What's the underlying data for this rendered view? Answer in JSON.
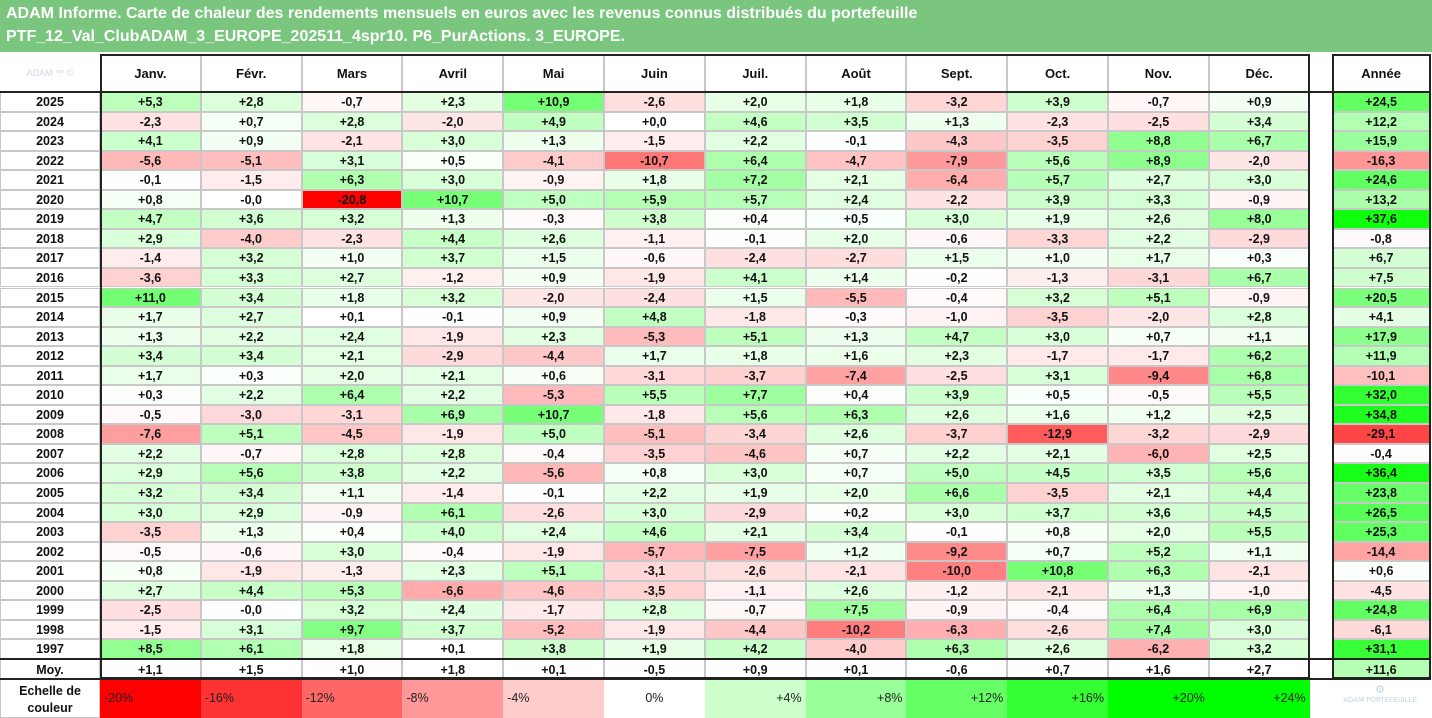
{
  "title": {
    "line1": "ADAM Informe. Carte de chaleur des rendements mensuels en euros avec les revenus connus distribués du portefeuille",
    "line2": "PTF_12_Val_ClubADAM_3_EUROPE_202511_4spr10. P6_PurActions. 3_EUROPE."
  },
  "colors": {
    "title_band": "#7bc67f",
    "scale_negative_max": "#ff0000",
    "scale_zero": "#ffffff",
    "scale_positive_max": "#00ff00"
  },
  "chart_data": {
    "type": "heatmap",
    "corner_label": "ADAM ™ ©",
    "columns": [
      "Janv.",
      "Févr.",
      "Mars",
      "Avril",
      "Mai",
      "Juin",
      "Juil.",
      "Août",
      "Sept.",
      "Oct.",
      "Nov.",
      "Déc."
    ],
    "annual_column": "Année",
    "rows": [
      {
        "year": "2025",
        "values": [
          "+5,3",
          "+2,8",
          "-0,7",
          "+2,3",
          "+10,9",
          "-2,6",
          "+2,0",
          "+1,8",
          "-3,2",
          "+3,9",
          "-0,7",
          "+0,9"
        ],
        "annual": "+24,5"
      },
      {
        "year": "2024",
        "values": [
          "-2,3",
          "+0,7",
          "+2,8",
          "-2,0",
          "+4,9",
          "+0,0",
          "+4,6",
          "+3,5",
          "+1,3",
          "-2,3",
          "-2,5",
          "+3,4"
        ],
        "annual": "+12,2"
      },
      {
        "year": "2023",
        "values": [
          "+4,1",
          "+0,9",
          "-2,1",
          "+3,0",
          "+1,3",
          "-1,5",
          "+2,2",
          "-0,1",
          "-4,3",
          "-3,5",
          "+8,8",
          "+6,7"
        ],
        "annual": "+15,9"
      },
      {
        "year": "2022",
        "values": [
          "-5,6",
          "-5,1",
          "+3,1",
          "+0,5",
          "-4,1",
          "-10,7",
          "+6,4",
          "-4,7",
          "-7,9",
          "+5,6",
          "+8,9",
          "-2,0"
        ],
        "annual": "-16,3"
      },
      {
        "year": "2021",
        "values": [
          "-0,1",
          "-1,5",
          "+6,3",
          "+3,0",
          "-0,9",
          "+1,8",
          "+7,2",
          "+2,1",
          "-6,4",
          "+5,7",
          "+2,7",
          "+3,0"
        ],
        "annual": "+24,6"
      },
      {
        "year": "2020",
        "values": [
          "+0,8",
          "-0,0",
          "-20,8",
          "+10,7",
          "+5,0",
          "+5,9",
          "+5,7",
          "+2,4",
          "-2,2",
          "+3,9",
          "+3,3",
          "-0,9"
        ],
        "annual": "+13,2"
      },
      {
        "year": "2019",
        "values": [
          "+4,7",
          "+3,6",
          "+3,2",
          "+1,3",
          "-0,3",
          "+3,8",
          "+0,4",
          "+0,5",
          "+3,0",
          "+1,9",
          "+2,6",
          "+8,0"
        ],
        "annual": "+37,6"
      },
      {
        "year": "2018",
        "values": [
          "+2,9",
          "-4,0",
          "-2,3",
          "+4,4",
          "+2,6",
          "-1,1",
          "-0,1",
          "+2,0",
          "-0,6",
          "-3,3",
          "+2,2",
          "-2,9"
        ],
        "annual": "-0,8"
      },
      {
        "year": "2017",
        "values": [
          "-1,4",
          "+3,2",
          "+1,0",
          "+3,7",
          "+1,5",
          "-0,6",
          "-2,4",
          "-2,7",
          "+1,5",
          "+1,0",
          "+1,7",
          "+0,3"
        ],
        "annual": "+6,7"
      },
      {
        "year": "2016",
        "values": [
          "-3,6",
          "+3,3",
          "+2,7",
          "-1,2",
          "+0,9",
          "-1,9",
          "+4,1",
          "+1,4",
          "-0,2",
          "-1,3",
          "-3,1",
          "+6,7"
        ],
        "annual": "+7,5"
      },
      {
        "year": "2015",
        "values": [
          "+11,0",
          "+3,4",
          "+1,8",
          "+3,2",
          "-2,0",
          "-2,4",
          "+1,5",
          "-5,5",
          "-0,4",
          "+3,2",
          "+5,1",
          "-0,9"
        ],
        "annual": "+20,5"
      },
      {
        "year": "2014",
        "values": [
          "+1,7",
          "+2,7",
          "+0,1",
          "-0,1",
          "+0,9",
          "+4,8",
          "-1,8",
          "-0,3",
          "-1,0",
          "-3,5",
          "-2,0",
          "+2,8"
        ],
        "annual": "+4,1"
      },
      {
        "year": "2013",
        "values": [
          "+1,3",
          "+2,2",
          "+2,4",
          "-1,9",
          "+2,3",
          "-5,3",
          "+5,1",
          "+1,3",
          "+4,7",
          "+3,0",
          "+0,7",
          "+1,1"
        ],
        "annual": "+17,9"
      },
      {
        "year": "2012",
        "values": [
          "+3,4",
          "+3,4",
          "+2,1",
          "-2,9",
          "-4,4",
          "+1,7",
          "+1,8",
          "+1,6",
          "+2,3",
          "-1,7",
          "-1,7",
          "+6,2"
        ],
        "annual": "+11,9"
      },
      {
        "year": "2011",
        "values": [
          "+1,7",
          "+0,3",
          "+2,0",
          "+2,1",
          "+0,6",
          "-3,1",
          "-3,7",
          "-7,4",
          "-2,5",
          "+3,1",
          "-9,4",
          "+6,8"
        ],
        "annual": "-10,1"
      },
      {
        "year": "2010",
        "values": [
          "+0,3",
          "+2,2",
          "+6,4",
          "+2,2",
          "-5,3",
          "+5,5",
          "+7,7",
          "+0,4",
          "+3,9",
          "+0,5",
          "-0,5",
          "+5,5"
        ],
        "annual": "+32,0"
      },
      {
        "year": "2009",
        "values": [
          "-0,5",
          "-3,0",
          "-3,1",
          "+6,9",
          "+10,7",
          "-1,8",
          "+5,6",
          "+6,3",
          "+2,6",
          "+1,6",
          "+1,2",
          "+2,5"
        ],
        "annual": "+34,8"
      },
      {
        "year": "2008",
        "values": [
          "-7,6",
          "+5,1",
          "-4,5",
          "-1,9",
          "+5,0",
          "-5,1",
          "-3,4",
          "+2,6",
          "-3,7",
          "-12,9",
          "-3,2",
          "-2,9"
        ],
        "annual": "-29,1"
      },
      {
        "year": "2007",
        "values": [
          "+2,2",
          "-0,7",
          "+2,8",
          "+2,8",
          "-0,4",
          "-3,5",
          "-4,6",
          "+0,7",
          "+2,2",
          "+2,1",
          "-6,0",
          "+2,5"
        ],
        "annual": "-0,4"
      },
      {
        "year": "2006",
        "values": [
          "+2,9",
          "+5,6",
          "+3,8",
          "+2,2",
          "-5,6",
          "+0,8",
          "+3,0",
          "+0,7",
          "+5,0",
          "+4,5",
          "+3,5",
          "+5,6"
        ],
        "annual": "+36,4"
      },
      {
        "year": "2005",
        "values": [
          "+3,2",
          "+3,4",
          "+1,1",
          "-1,4",
          "-0,1",
          "+2,2",
          "+1,9",
          "+2,0",
          "+6,6",
          "-3,5",
          "+2,1",
          "+4,4"
        ],
        "annual": "+23,8"
      },
      {
        "year": "2004",
        "values": [
          "+3,0",
          "+2,9",
          "-0,9",
          "+6,1",
          "-2,6",
          "+3,0",
          "-2,9",
          "+0,2",
          "+3,0",
          "+3,7",
          "+3,6",
          "+4,5"
        ],
        "annual": "+26,5"
      },
      {
        "year": "2003",
        "values": [
          "-3,5",
          "+1,3",
          "+0,4",
          "+4,0",
          "+2,4",
          "+4,6",
          "+2,1",
          "+3,4",
          "-0,1",
          "+0,8",
          "+2,0",
          "+5,5"
        ],
        "annual": "+25,3"
      },
      {
        "year": "2002",
        "values": [
          "-0,5",
          "-0,6",
          "+3,0",
          "-0,4",
          "-1,9",
          "-5,7",
          "-7,5",
          "+1,2",
          "-9,2",
          "+0,7",
          "+5,2",
          "+1,1"
        ],
        "annual": "-14,4"
      },
      {
        "year": "2001",
        "values": [
          "+0,8",
          "-1,9",
          "-1,3",
          "+2,3",
          "+5,1",
          "-3,1",
          "-2,6",
          "-2,1",
          "-10,0",
          "+10,8",
          "+6,3",
          "-2,1"
        ],
        "annual": "+0,6"
      },
      {
        "year": "2000",
        "values": [
          "+2,7",
          "+4,4",
          "+5,3",
          "-6,6",
          "-4,6",
          "-3,5",
          "-1,1",
          "+2,6",
          "-1,2",
          "-2,1",
          "+1,3",
          "-1,0"
        ],
        "annual": "-4,5"
      },
      {
        "year": "1999",
        "values": [
          "-2,5",
          "-0,0",
          "+3,2",
          "+2,4",
          "-1,7",
          "+2,8",
          "-0,7",
          "+7,5",
          "-0,9",
          "-0,4",
          "+6,4",
          "+6,9"
        ],
        "annual": "+24,8"
      },
      {
        "year": "1998",
        "values": [
          "-1,5",
          "+3,1",
          "+9,7",
          "+3,7",
          "-5,2",
          "-1,9",
          "-4,4",
          "-10,2",
          "-6,3",
          "-2,6",
          "+7,4",
          "+3,0"
        ],
        "annual": "-6,1"
      },
      {
        "year": "1997",
        "values": [
          "+8,5",
          "+6,1",
          "+1,8",
          "+0,1",
          "+3,8",
          "+1,9",
          "+4,2",
          "-4,0",
          "+6,3",
          "+2,6",
          "-6,2",
          "+3,2"
        ],
        "annual": "+31,1"
      }
    ],
    "average": {
      "label": "Moy.",
      "values": [
        "+1,1",
        "+1,5",
        "+1,0",
        "+1,8",
        "+0,1",
        "-0,5",
        "+0,9",
        "+0,1",
        "-0,6",
        "+0,7",
        "+1,6",
        "+2,7"
      ],
      "annual": "+11,6"
    },
    "legend": {
      "label": "Echelle de couleur",
      "steps": [
        {
          "label": "-20%",
          "value": -20
        },
        {
          "label": "-16%",
          "value": -16
        },
        {
          "label": "-12%",
          "value": -12
        },
        {
          "label": "-8%",
          "value": -8
        },
        {
          "label": "-4%",
          "value": -4
        },
        {
          "label": "0%",
          "value": 0
        },
        {
          "label": "+4%",
          "value": 4
        },
        {
          "label": "+8%",
          "value": 8
        },
        {
          "label": "+12%",
          "value": 12
        },
        {
          "label": "+16%",
          "value": 16
        },
        {
          "label": "+20%",
          "value": 20
        },
        {
          "label": "+24%",
          "value": 24
        }
      ]
    },
    "watermark": "ADAM PORTEFEUILLE"
  }
}
